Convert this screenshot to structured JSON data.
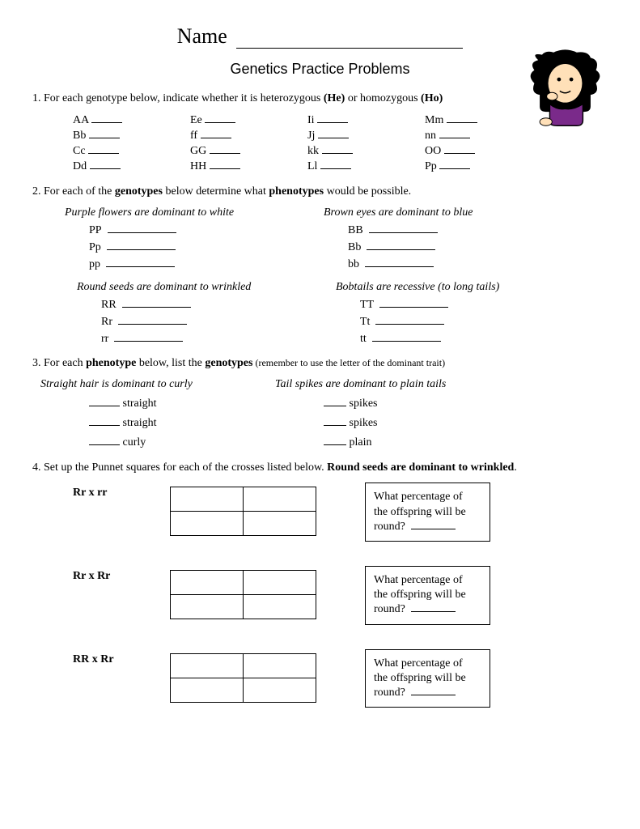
{
  "header": {
    "name_label": "Name"
  },
  "title": "Genetics Practice Problems",
  "q1": {
    "prompt_pre": "1.  For each genotype below, indicate whether it is heterozygous ",
    "he": "(He)",
    "mid": " or homozygous ",
    "ho": "(Ho)",
    "items": [
      "AA",
      "Bb",
      "Cc",
      "Dd",
      "Ee",
      "ff",
      "GG",
      "HH",
      "Ii",
      "Jj",
      "kk",
      "Ll",
      "Mm",
      "nn",
      "OO",
      "Pp"
    ]
  },
  "q2": {
    "prompt_pre": "2.  For each of the ",
    "bold1": "genotypes",
    "mid": " below determine what ",
    "bold2": "phenotypes",
    "post": " would be possible.",
    "sections": [
      {
        "heading": "Purple flowers are dominant to white",
        "items": [
          "PP",
          "Pp",
          "pp"
        ]
      },
      {
        "heading": "Brown eyes are dominant to blue",
        "items": [
          "BB",
          "Bb",
          "bb"
        ]
      },
      {
        "heading": "Round seeds are dominant to wrinkled",
        "items": [
          "RR",
          "Rr",
          "rr"
        ]
      },
      {
        "heading": "Bobtails are recessive (to long tails)",
        "items": [
          "TT",
          "Tt",
          "tt"
        ]
      }
    ]
  },
  "q3": {
    "prompt_pre": "3.  For each ",
    "bold1": "phenotype",
    "mid": " below, list the ",
    "bold2": "genotypes",
    "post": " (remember to use the letter of the dominant trait)",
    "sections": [
      {
        "heading": "Straight hair is dominant to curly",
        "items": [
          "straight",
          "straight",
          "curly"
        ]
      },
      {
        "heading": "Tail spikes are dominant to plain tails",
        "items": [
          "spikes",
          "spikes",
          "plain"
        ]
      }
    ]
  },
  "q4": {
    "prompt_pre": "4.  Set up the Punnet squares for each of the crosses listed below.  ",
    "bold": "Round seeds are dominant to wrinkled",
    "post": ".",
    "crosses": [
      {
        "label": "Rr   x   rr"
      },
      {
        "label": "Rr  x  Rr"
      },
      {
        "label": "RR  x  Rr"
      }
    ],
    "box_line1": "What percentage of",
    "box_line2": "the offspring will be",
    "box_line3": "round?"
  }
}
